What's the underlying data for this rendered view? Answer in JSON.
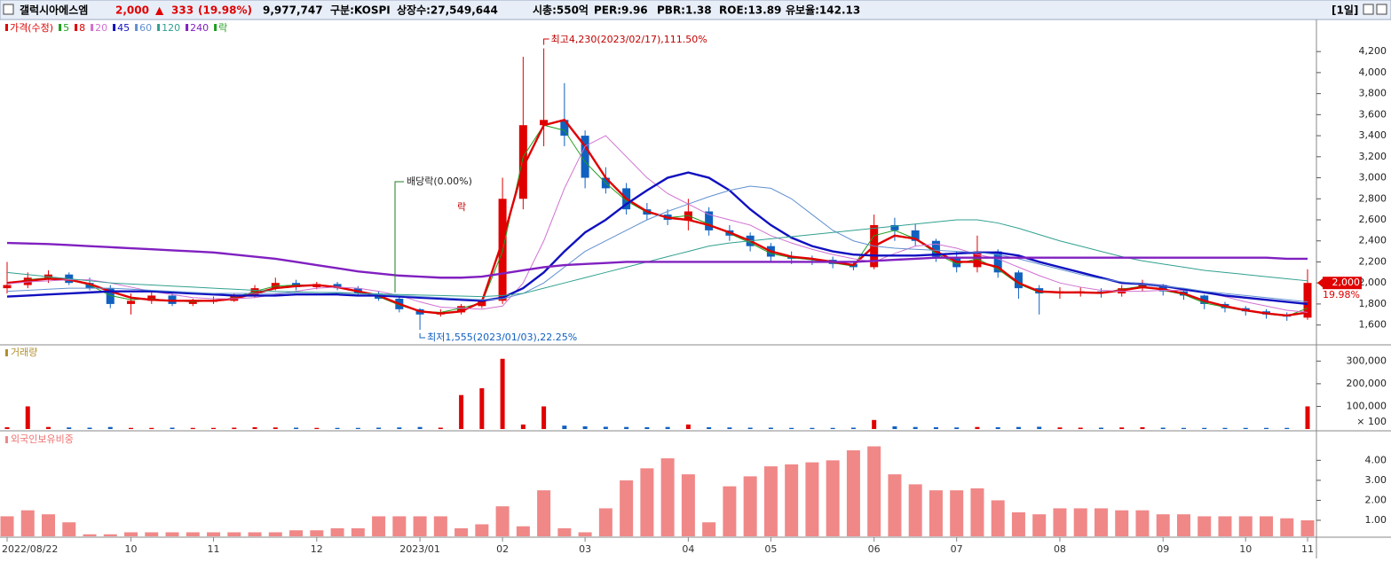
{
  "header": {
    "name": "갤럭시아에스엠",
    "price": "2,000",
    "arrow": "▲",
    "change": "333",
    "change_pct": "(19.98%)",
    "volume": "9,977,747",
    "market": "구분:KOSPI",
    "shares": "상장수:27,549,644",
    "cap": "시총:550억",
    "per": "PER:9.96",
    "pbr": "PBR:1.38",
    "roe": "ROE:13.89",
    "reserve": "유보율:142.13",
    "period": "[1일]"
  },
  "chart_data": [
    {
      "type": "candlestick",
      "price_name": "가격(수정)",
      "lock_label": "락",
      "up_color": "#e00000",
      "down_color": "#1060c0",
      "high_note": "최고4,230(2023/02/17),111.50%",
      "low_note": "최저1,555(2023/01/03),22.25%",
      "dividend_note": "배당락(0.00%)",
      "price_tag": "2,000",
      "change_tag": "19.98%",
      "categories": [
        "2022/08/22",
        null,
        null,
        null,
        null,
        null,
        "10",
        null,
        null,
        null,
        "11",
        null,
        null,
        null,
        null,
        "12",
        null,
        null,
        null,
        null,
        "2023/01",
        null,
        null,
        null,
        "02",
        null,
        null,
        null,
        "03",
        null,
        null,
        null,
        null,
        "04",
        null,
        null,
        null,
        "05",
        null,
        null,
        null,
        null,
        "06",
        null,
        null,
        null,
        "07",
        null,
        null,
        null,
        null,
        "08",
        null,
        null,
        null,
        null,
        "09",
        null,
        null,
        null,
        "10",
        null,
        null,
        "11"
      ],
      "open": [
        1950,
        1980,
        2050,
        2080,
        2000,
        1950,
        1800,
        1830,
        1880,
        1800,
        1820,
        1830,
        1880,
        1950,
        2000,
        1960,
        1990,
        1950,
        1900,
        1850,
        1750,
        1700,
        1720,
        1780,
        1830,
        2800,
        3500,
        3550,
        3400,
        3000,
        2900,
        2700,
        2650,
        2600,
        2680,
        2500,
        2450,
        2350,
        2250,
        2230,
        2220,
        2180,
        2150,
        2550,
        2500,
        2400,
        2250,
        2150,
        2300,
        2100,
        1950,
        1900,
        1920,
        1920,
        1900,
        1950,
        1980,
        1920,
        1880,
        1800,
        1760,
        1730,
        1700,
        1670
      ],
      "high": [
        2200,
        2100,
        2120,
        2100,
        2050,
        1980,
        1900,
        1920,
        1900,
        1850,
        1870,
        1900,
        1980,
        2050,
        2030,
        2010,
        2010,
        1970,
        1920,
        1870,
        1760,
        1750,
        1800,
        1850,
        3000,
        4150,
        4230,
        3900,
        3450,
        3100,
        2950,
        2760,
        2700,
        2800,
        2720,
        2550,
        2480,
        2380,
        2300,
        2260,
        2250,
        2200,
        2650,
        2620,
        2560,
        2420,
        2300,
        2450,
        2320,
        2120,
        1980,
        1960,
        1960,
        1950,
        1980,
        2030,
        1990,
        1940,
        1890,
        1820,
        1780,
        1750,
        1720,
        2130
      ],
      "low": [
        1900,
        1950,
        2000,
        1980,
        1930,
        1760,
        1700,
        1800,
        1780,
        1780,
        1800,
        1820,
        1860,
        1930,
        1930,
        1940,
        1930,
        1880,
        1830,
        1720,
        1555,
        1680,
        1700,
        1760,
        1800,
        2700,
        3300,
        3300,
        2900,
        2850,
        2650,
        2600,
        2550,
        2500,
        2450,
        2400,
        2300,
        2200,
        2180,
        2170,
        2140,
        2120,
        2130,
        2400,
        2350,
        2200,
        2100,
        2100,
        2050,
        1850,
        1700,
        1850,
        1870,
        1860,
        1870,
        1920,
        1880,
        1840,
        1750,
        1720,
        1690,
        1660,
        1640,
        1650
      ],
      "close": [
        1980,
        2050,
        2080,
        2000,
        1950,
        1800,
        1830,
        1880,
        1800,
        1820,
        1830,
        1880,
        1950,
        2000,
        1960,
        1990,
        1950,
        1900,
        1850,
        1750,
        1700,
        1720,
        1780,
        1830,
        2800,
        3500,
        3550,
        3400,
        3000,
        2900,
        2700,
        2650,
        2600,
        2680,
        2500,
        2450,
        2350,
        2250,
        2230,
        2220,
        2180,
        2150,
        2550,
        2500,
        2400,
        2250,
        2150,
        2300,
        2100,
        1950,
        1900,
        1920,
        1920,
        1900,
        1950,
        1980,
        1920,
        1880,
        1800,
        1760,
        1730,
        1700,
        1680,
        2000
      ],
      "series": [
        {
          "name": "5",
          "color": "#1f9e1f",
          "values": [
            1990,
            2030,
            2050,
            2030,
            1980,
            1880,
            1840,
            1850,
            1830,
            1820,
            1830,
            1860,
            1920,
            1970,
            1980,
            1980,
            1960,
            1920,
            1870,
            1790,
            1730,
            1720,
            1760,
            1810,
            2300,
            3200,
            3500,
            3450,
            3150,
            2950,
            2780,
            2670,
            2620,
            2640,
            2560,
            2470,
            2380,
            2280,
            2240,
            2220,
            2190,
            2160,
            2450,
            2500,
            2420,
            2280,
            2180,
            2230,
            2130,
            1990,
            1910,
            1910,
            1915,
            1905,
            1940,
            1970,
            1930,
            1890,
            1810,
            1770,
            1735,
            1705,
            1685,
            1760
          ]
        },
        {
          "name": "8",
          "color": "#e00000",
          "values": [
            2000,
            2020,
            2040,
            2030,
            1990,
            1920,
            1860,
            1840,
            1830,
            1830,
            1830,
            1850,
            1900,
            1950,
            1970,
            1980,
            1960,
            1920,
            1880,
            1800,
            1730,
            1710,
            1730,
            1820,
            2400,
            3100,
            3500,
            3550,
            3300,
            3000,
            2800,
            2680,
            2620,
            2600,
            2550,
            2480,
            2400,
            2300,
            2250,
            2230,
            2200,
            2170,
            2350,
            2450,
            2420,
            2300,
            2200,
            2200,
            2150,
            2000,
            1920,
            1910,
            1910,
            1905,
            1930,
            1960,
            1940,
            1900,
            1830,
            1780,
            1740,
            1710,
            1690,
            1720
          ]
        },
        {
          "name": "20",
          "color": "#d070d0",
          "values": [
            1990,
            2010,
            2020,
            2030,
            2030,
            2000,
            1960,
            1920,
            1890,
            1860,
            1850,
            1850,
            1860,
            1890,
            1920,
            1950,
            1960,
            1950,
            1920,
            1880,
            1820,
            1770,
            1760,
            1750,
            1780,
            2000,
            2400,
            2900,
            3300,
            3400,
            3200,
            3000,
            2850,
            2750,
            2650,
            2600,
            2550,
            2450,
            2380,
            2320,
            2270,
            2230,
            2200,
            2280,
            2350,
            2370,
            2330,
            2270,
            2230,
            2150,
            2070,
            2000,
            1960,
            1930,
            1920,
            1920,
            1930,
            1930,
            1910,
            1870,
            1820,
            1780,
            1740,
            1720
          ]
        },
        {
          "name": "45",
          "color": "#1010c0",
          "values": [
            1870,
            1880,
            1890,
            1900,
            1910,
            1920,
            1920,
            1920,
            1910,
            1900,
            1890,
            1880,
            1880,
            1880,
            1890,
            1890,
            1890,
            1880,
            1880,
            1870,
            1860,
            1850,
            1840,
            1830,
            1860,
            1950,
            2100,
            2300,
            2480,
            2600,
            2750,
            2880,
            3000,
            3050,
            3000,
            2880,
            2700,
            2550,
            2430,
            2350,
            2300,
            2270,
            2260,
            2260,
            2260,
            2270,
            2280,
            2290,
            2290,
            2260,
            2200,
            2150,
            2100,
            2050,
            2000,
            1990,
            1970,
            1940,
            1910,
            1880,
            1860,
            1840,
            1820,
            1800
          ]
        },
        {
          "name": "60",
          "color": "#6090d0",
          "values": [
            1920,
            1930,
            1940,
            1950,
            1950,
            1950,
            1940,
            1930,
            1920,
            1910,
            1900,
            1900,
            1900,
            1900,
            1910,
            1910,
            1910,
            1900,
            1890,
            1880,
            1870,
            1860,
            1850,
            1840,
            1850,
            1900,
            2000,
            2150,
            2300,
            2400,
            2500,
            2600,
            2680,
            2750,
            2820,
            2880,
            2920,
            2900,
            2800,
            2650,
            2500,
            2400,
            2350,
            2330,
            2320,
            2310,
            2300,
            2290,
            2270,
            2230,
            2180,
            2130,
            2080,
            2040,
            2010,
            1990,
            1970,
            1950,
            1920,
            1900,
            1880,
            1860,
            1840,
            1820
          ]
        },
        {
          "name": "120",
          "color": "#30a090",
          "values": [
            2100,
            2080,
            2060,
            2040,
            2020,
            2000,
            1990,
            1980,
            1970,
            1960,
            1950,
            1940,
            1930,
            1920,
            1915,
            1910,
            1905,
            1900,
            1895,
            1890,
            1885,
            1880,
            1875,
            1870,
            1880,
            1900,
            1950,
            2000,
            2050,
            2100,
            2150,
            2200,
            2250,
            2300,
            2350,
            2380,
            2400,
            2420,
            2440,
            2460,
            2480,
            2500,
            2520,
            2540,
            2560,
            2580,
            2600,
            2600,
            2570,
            2520,
            2460,
            2400,
            2350,
            2300,
            2250,
            2210,
            2180,
            2150,
            2120,
            2100,
            2080,
            2060,
            2040,
            2020
          ]
        },
        {
          "name": "240",
          "color": "#8020c0",
          "values": [
            2380,
            2375,
            2370,
            2360,
            2350,
            2340,
            2330,
            2320,
            2310,
            2300,
            2290,
            2270,
            2250,
            2230,
            2200,
            2170,
            2140,
            2110,
            2090,
            2070,
            2060,
            2050,
            2050,
            2060,
            2090,
            2120,
            2150,
            2170,
            2180,
            2190,
            2200,
            2200,
            2200,
            2200,
            2200,
            2200,
            2200,
            2200,
            2200,
            2200,
            2200,
            2200,
            2210,
            2220,
            2230,
            2240,
            2240,
            2240,
            2240,
            2240,
            2240,
            2240,
            2240,
            2240,
            2240,
            2240,
            2240,
            2240,
            2240,
            2240,
            2240,
            2240,
            2230,
            2230
          ]
        }
      ],
      "ylim": [
        1420,
        4370
      ],
      "yticks": [
        {
          "value": 1600,
          "label": "1,600"
        },
        {
          "value": 1800,
          "label": "1,800"
        },
        {
          "value": 2000,
          "label": "2,000"
        },
        {
          "value": 2200,
          "label": "2,200"
        },
        {
          "value": 2400,
          "label": "2,400"
        },
        {
          "value": 2600,
          "label": "2,600"
        },
        {
          "value": 2800,
          "label": "2,800"
        },
        {
          "value": 3000,
          "label": "3,000"
        },
        {
          "value": 3200,
          "label": "3,200"
        },
        {
          "value": 3400,
          "label": "3,400"
        },
        {
          "value": 3600,
          "label": "3,600"
        },
        {
          "value": 3800,
          "label": "3,800"
        },
        {
          "value": 4000,
          "label": "4,000"
        },
        {
          "value": 4200,
          "label": "4,200"
        }
      ]
    },
    {
      "type": "bar",
      "title": "거래량",
      "unit": "× 100",
      "color_source": "candles",
      "values": [
        8000,
        100000,
        9000,
        7000,
        6000,
        9000,
        5000,
        5000,
        6000,
        5000,
        5000,
        6000,
        8000,
        7000,
        6000,
        5000,
        5000,
        5000,
        6000,
        7000,
        9000,
        6000,
        150000,
        180000,
        310000,
        20000,
        100000,
        15000,
        12000,
        10000,
        9000,
        8000,
        9000,
        20000,
        8000,
        7000,
        6000,
        6000,
        5000,
        5000,
        5000,
        6000,
        40000,
        12000,
        9000,
        8000,
        7000,
        9000,
        8000,
        9000,
        10000,
        7000,
        6000,
        6000,
        7000,
        8000,
        6000,
        5000,
        5000,
        5000,
        5000,
        5000,
        5000,
        100000
      ],
      "ylim": [
        0,
        360000
      ],
      "yticks": [
        {
          "value": 100000,
          "label": "100,000"
        },
        {
          "value": 200000,
          "label": "200,000"
        },
        {
          "value": 300000,
          "label": "300,000"
        }
      ]
    },
    {
      "type": "bar",
      "title": "외국인보유비중",
      "color": "#f08888",
      "values": [
        1.2,
        1.5,
        1.3,
        0.9,
        0.3,
        0.3,
        0.4,
        0.4,
        0.4,
        0.4,
        0.4,
        0.4,
        0.4,
        0.4,
        0.5,
        0.5,
        0.6,
        0.6,
        1.2,
        1.2,
        1.2,
        1.2,
        0.6,
        0.8,
        1.7,
        0.7,
        2.5,
        0.6,
        0.4,
        1.6,
        3.0,
        3.6,
        4.1,
        3.3,
        0.9,
        2.7,
        3.2,
        3.7,
        3.8,
        3.9,
        4.0,
        4.5,
        4.7,
        3.3,
        2.8,
        2.5,
        2.5,
        2.6,
        2.0,
        1.4,
        1.3,
        1.6,
        1.6,
        1.6,
        1.5,
        1.5,
        1.3,
        1.3,
        1.2,
        1.2,
        1.2,
        1.2,
        1.1,
        1.0
      ],
      "ylim": [
        0.2,
        5.3
      ],
      "yticks": [
        {
          "value": 1,
          "label": "1.00"
        },
        {
          "value": 2,
          "label": "2.00"
        },
        {
          "value": 3,
          "label": "3.00"
        },
        {
          "value": 4,
          "label": "4.00"
        }
      ]
    }
  ]
}
